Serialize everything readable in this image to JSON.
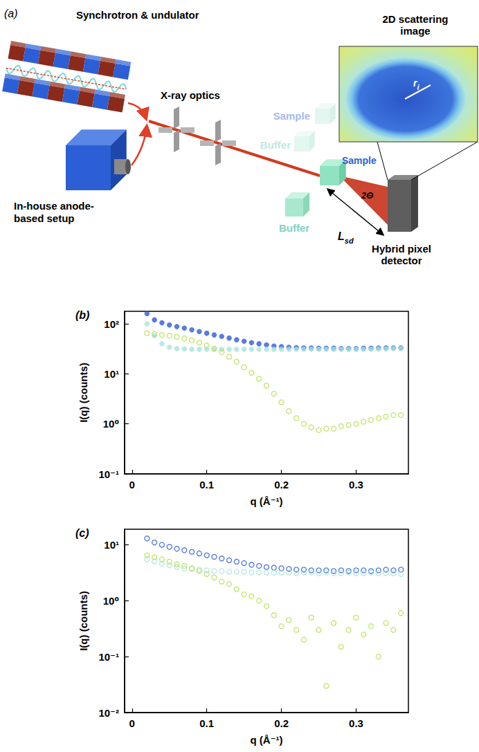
{
  "diagram": {
    "panel_label": "(a)",
    "source_top": "Synchrotron & undulator",
    "source_bottom": [
      "In-house anode-",
      "based setup"
    ],
    "optics": "X-ray optics",
    "sample": "Sample",
    "buffer": "Buffer",
    "faded_sample": "Sample",
    "faded_buffer": "Buffer",
    "angle": "2Θ",
    "distance": {
      "text": "L",
      "subscript": "sd"
    },
    "detector": [
      "Hybrid pixel",
      "detector"
    ],
    "image_title": [
      "2D scattering",
      "image"
    ],
    "radius": {
      "text": "r",
      "subscript": "i"
    }
  },
  "chart_data": [
    {
      "type": "scatter",
      "title": "(b)",
      "xlabel": "q (Å⁻¹)",
      "ylabel": "I(q) (counts)",
      "log": "y",
      "x": [
        0.02,
        0.03,
        0.04,
        0.05,
        0.06,
        0.07,
        0.08,
        0.09,
        0.1,
        0.11,
        0.12,
        0.13,
        0.14,
        0.15,
        0.16,
        0.17,
        0.18,
        0.19,
        0.2,
        0.21,
        0.22,
        0.23,
        0.24,
        0.25,
        0.26,
        0.27,
        0.28,
        0.29,
        0.3,
        0.31,
        0.32,
        0.33,
        0.34,
        0.35,
        0.36
      ],
      "xlim": [
        -0.01,
        0.37
      ],
      "xticks": [
        0,
        0.1,
        0.2,
        0.3
      ],
      "ylim": [
        0.1,
        178
      ],
      "yticks": [
        {
          "value": 0.1,
          "label": "10⁻¹"
        },
        {
          "value": 1,
          "label": "10⁰"
        },
        {
          "value": 10,
          "label": "10¹"
        },
        {
          "value": 100,
          "label": "10²"
        }
      ],
      "series": [
        {
          "color": "#2f5bd8",
          "marker": "circle",
          "values": [
            160,
            120,
            105,
            95,
            88,
            82,
            76,
            70,
            65,
            60,
            56,
            52,
            48,
            45,
            42,
            40,
            38,
            36,
            35,
            34,
            33.5,
            33,
            33,
            32.5,
            32.5,
            32.5,
            32,
            32,
            32,
            32.5,
            32.5,
            33,
            33,
            33,
            33
          ]
        },
        {
          "color": "#a9e4dc",
          "marker": "circle",
          "values": [
            100,
            58,
            40,
            34,
            32,
            31.5,
            31,
            31,
            31,
            31,
            31,
            31,
            31,
            31,
            31,
            31,
            31,
            31,
            31,
            31,
            31,
            31,
            31,
            31,
            31,
            31,
            31,
            31,
            31,
            31,
            31,
            31.5,
            31.5,
            32,
            32
          ]
        },
        {
          "color": "#b5e04f",
          "marker": "open_circle",
          "values": [
            65,
            63,
            60,
            58,
            55,
            51,
            47,
            42,
            37,
            32,
            27,
            22,
            17.5,
            13.5,
            10.5,
            8,
            5.8,
            4,
            2.7,
            1.8,
            1.3,
            1.0,
            0.85,
            0.75,
            0.8,
            0.8,
            0.9,
            0.95,
            1.0,
            1.1,
            1.2,
            1.3,
            1.4,
            1.5,
            1.5
          ]
        }
      ]
    },
    {
      "type": "scatter",
      "title": "(c)",
      "xlabel": "q (Å⁻¹)",
      "ylabel": "I(q) (counts)",
      "log": "y",
      "x": [
        0.02,
        0.03,
        0.04,
        0.05,
        0.06,
        0.07,
        0.08,
        0.09,
        0.1,
        0.11,
        0.12,
        0.13,
        0.14,
        0.15,
        0.16,
        0.17,
        0.18,
        0.19,
        0.2,
        0.21,
        0.22,
        0.23,
        0.24,
        0.25,
        0.26,
        0.27,
        0.28,
        0.29,
        0.3,
        0.31,
        0.32,
        0.33,
        0.34,
        0.35,
        0.36
      ],
      "xlim": [
        -0.01,
        0.37
      ],
      "xticks": [
        0,
        0.1,
        0.2,
        0.3
      ],
      "ylim": [
        0.01,
        19
      ],
      "yticks": [
        {
          "value": 0.01,
          "label": "10⁻²"
        },
        {
          "value": 0.1,
          "label": "10⁻¹"
        },
        {
          "value": 1,
          "label": "10⁰"
        },
        {
          "value": 10,
          "label": "10¹"
        }
      ],
      "series": [
        {
          "color": "#2f5bd8",
          "marker": "open_circle",
          "values": [
            13,
            11,
            10,
            9.2,
            8.5,
            8,
            7.5,
            7,
            6.5,
            6.1,
            5.7,
            5.3,
            5,
            4.7,
            4.4,
            4.2,
            4,
            3.9,
            3.8,
            3.7,
            3.6,
            3.6,
            3.5,
            3.5,
            3.5,
            3.4,
            3.5,
            3.4,
            3.5,
            3.5,
            3.4,
            3.5,
            3.6,
            3.5,
            3.6
          ]
        },
        {
          "color": "#a9e4dc",
          "marker": "open_circle",
          "values": [
            5.5,
            5,
            4.6,
            4.3,
            4,
            3.8,
            3.7,
            3.6,
            3.5,
            3.4,
            3.4,
            3.3,
            3.3,
            3.3,
            3.2,
            3.2,
            3.2,
            3.2,
            3.2,
            3.2,
            3.1,
            3.2,
            3.2,
            3.1,
            3.2,
            3.1,
            3.1,
            3.2,
            3.1,
            3.1,
            3.2,
            3.1,
            3.1,
            3.1,
            3.0
          ]
        },
        {
          "color": "#b5e04f",
          "marker": "open_circle",
          "values": [
            6.5,
            6,
            5.5,
            5,
            4.5,
            4.2,
            3.8,
            3.4,
            3,
            2.6,
            2.2,
            2,
            1.6,
            1.3,
            1.2,
            1,
            0.8,
            0.55,
            0.35,
            0.45,
            0.3,
            0.2,
            0.5,
            0.3,
            0.03,
            0.4,
            0.15,
            0.3,
            0.5,
            0.25,
            0.35,
            0.1,
            0.4,
            0.3,
            0.6
          ]
        }
      ]
    }
  ]
}
